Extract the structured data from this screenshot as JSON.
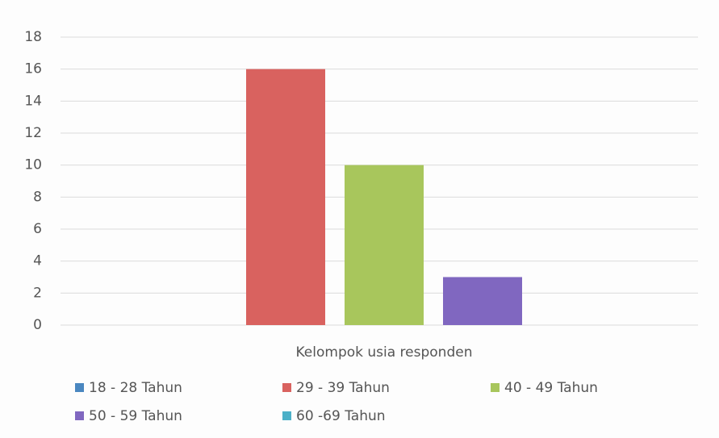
{
  "chart_data": {
    "type": "bar",
    "categories": [
      "Kelompok usia responden"
    ],
    "series": [
      {
        "name": "18 - 28 Tahun",
        "color": "#4a87c0",
        "values": [
          0
        ]
      },
      {
        "name": "29 - 39 Tahun",
        "color": "#d9625f",
        "values": [
          16
        ]
      },
      {
        "name": "40 - 49 Tahun",
        "color": "#a8c65c",
        "values": [
          10
        ]
      },
      {
        "name": "50 - 59 Tahun",
        "color": "#8067c0",
        "values": [
          3
        ]
      },
      {
        "name": "60 -69 Tahun",
        "color": "#4bb0c8",
        "values": [
          0
        ]
      }
    ],
    "ylim": [
      0,
      18
    ],
    "yticks": [
      0,
      2,
      4,
      6,
      8,
      10,
      12,
      14,
      16,
      18
    ],
    "grid": true,
    "legend": "bottom"
  }
}
